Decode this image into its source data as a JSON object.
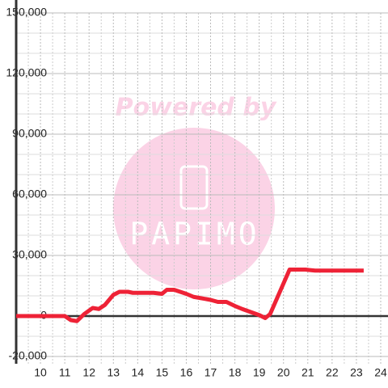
{
  "chart_data": {
    "type": "line",
    "watermark": {
      "top": "Powered by",
      "logo": "PAPIMO"
    },
    "x": [
      9.0,
      11.0,
      11.25,
      11.5,
      11.8,
      12.15,
      12.4,
      12.65,
      13.0,
      13.25,
      13.6,
      13.8,
      14.65,
      15.0,
      15.2,
      15.5,
      16.0,
      16.3,
      17.0,
      17.3,
      17.65,
      18.0,
      18.3,
      19.0,
      19.25,
      19.45,
      20.25,
      20.9,
      21.3,
      23.3
    ],
    "series": [
      {
        "color": "#ee2236",
        "values": [
          0,
          0,
          -2000,
          -2500,
          1000,
          4000,
          3500,
          5500,
          10500,
          12000,
          12000,
          11500,
          11500,
          11000,
          13000,
          13000,
          11000,
          9500,
          8000,
          7000,
          7000,
          5000,
          3500,
          500,
          -1000,
          1000,
          23000,
          23000,
          22500,
          22500
        ]
      }
    ],
    "xlim": [
      9,
      24.3
    ],
    "xticks": [
      10,
      11,
      12,
      13,
      14,
      15,
      16,
      17,
      18,
      19,
      20,
      21,
      22,
      23,
      24
    ],
    "x_minor_ticks": [
      9.5,
      10.5,
      11.5,
      12.5,
      13.5,
      14.5,
      15.5,
      16.5,
      17.5,
      18.5,
      19.5,
      20.5,
      21.5,
      22.5,
      23.5
    ],
    "ylim": [
      -23600,
      150000
    ],
    "yticks": [
      {
        "value": 150000,
        "label": "150,000"
      },
      {
        "value": 120000,
        "label": "120,000"
      },
      {
        "value": 90000,
        "label": "90,000"
      },
      {
        "value": 60000,
        "label": "60,000"
      },
      {
        "value": 30000,
        "label": "30,000"
      },
      0,
      {
        "value": -20000,
        "label": "-20,000"
      }
    ],
    "y_minor_ticks": [
      140000,
      130000,
      110000,
      100000,
      80000,
      70000,
      50000,
      40000,
      20000,
      10000,
      -10000
    ],
    "grid": true
  }
}
